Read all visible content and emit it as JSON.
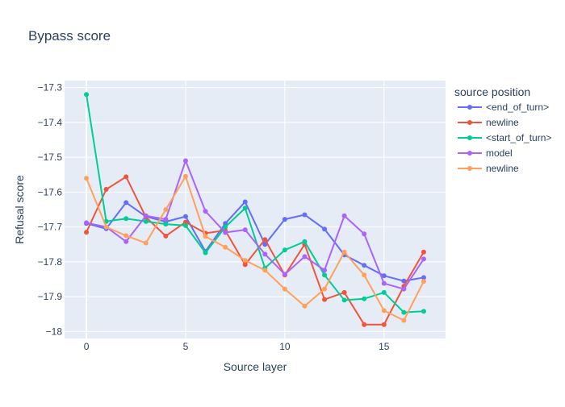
{
  "chart_data": {
    "type": "line",
    "title": "Bypass score",
    "xlabel": "Source layer",
    "ylabel": "Refusal score",
    "legend_title": "source position",
    "legend_position": "right",
    "xlim": [
      -1.1,
      18.1
    ],
    "ylim": [
      -18.02,
      -17.28
    ],
    "xticks": [
      0,
      5,
      10,
      15
    ],
    "yticks": [
      -17.3,
      -17.4,
      -17.5,
      -17.6,
      -17.7,
      -17.8,
      -17.9,
      -18
    ],
    "ytick_labels": [
      "−17.3",
      "−17.4",
      "−17.5",
      "−17.6",
      "−17.7",
      "−17.8",
      "−17.9",
      "−18"
    ],
    "grid": true,
    "x": [
      0,
      1,
      2,
      3,
      4,
      5,
      6,
      7,
      8,
      9,
      10,
      11,
      12,
      13,
      14,
      15,
      16,
      17
    ],
    "series": [
      {
        "name": "<end_of_turn>",
        "color": "#636efa",
        "values": [
          -17.69,
          -17.705,
          -17.63,
          -17.67,
          -17.685,
          -17.67,
          -17.77,
          -17.69,
          -17.628,
          -17.75,
          -17.678,
          -17.665,
          -17.706,
          -17.78,
          -17.81,
          -17.84,
          -17.855,
          -17.845
        ]
      },
      {
        "name": "newline",
        "color": "#ef553b",
        "values": [
          -17.715,
          -17.592,
          -17.556,
          -17.672,
          -17.726,
          -17.686,
          -17.718,
          -17.71,
          -17.808,
          -17.736,
          -17.838,
          -17.75,
          -17.908,
          -17.888,
          -17.98,
          -17.98,
          -17.87,
          -17.772
        ]
      },
      {
        "name": "<start_of_turn>",
        "color": "#00cc96",
        "values": [
          -17.32,
          -17.684,
          -17.676,
          -17.684,
          -17.692,
          -17.696,
          -17.774,
          -17.7,
          -17.646,
          -17.818,
          -17.766,
          -17.742,
          -17.838,
          -17.91,
          -17.906,
          -17.888,
          -17.945,
          -17.942
        ]
      },
      {
        "name": "model",
        "color": "#ab63fa",
        "values": [
          -17.688,
          -17.7,
          -17.742,
          -17.668,
          -17.678,
          -17.51,
          -17.655,
          -17.716,
          -17.708,
          -17.778,
          -17.836,
          -17.785,
          -17.824,
          -17.668,
          -17.72,
          -17.862,
          -17.878,
          -17.792
        ]
      },
      {
        "name": "newline",
        "color": "#ffa15a",
        "values": [
          -17.56,
          -17.7,
          -17.725,
          -17.746,
          -17.65,
          -17.555,
          -17.727,
          -17.758,
          -17.796,
          -17.824,
          -17.878,
          -17.927,
          -17.878,
          -17.772,
          -17.838,
          -17.94,
          -17.968,
          -17.856
        ]
      }
    ]
  }
}
